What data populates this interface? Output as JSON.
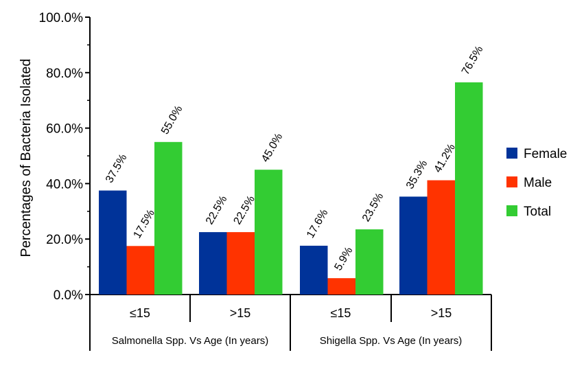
{
  "chart_data": {
    "type": "bar",
    "title": "",
    "ylabel": "Percentages of Bacteria Isolated",
    "ylim": [
      0,
      100
    ],
    "yticks": [
      0,
      20,
      40,
      60,
      80,
      100
    ],
    "ytick_labels": [
      "0.0%",
      "20.0%",
      "40.0%",
      "60.0%",
      "80.0%",
      "100.0%"
    ],
    "grid": false,
    "legend_position": "right",
    "groups": [
      {
        "label": "Salmonella Spp. Vs Age (In years)",
        "categories": [
          "≤15",
          ">15"
        ]
      },
      {
        "label": "Shigella Spp. Vs Age (In years)",
        "categories": [
          "≤15",
          ">15"
        ]
      }
    ],
    "categories": [
      "≤15",
      ">15",
      "≤15",
      ">15"
    ],
    "series": [
      {
        "name": "Female",
        "color": "#003399",
        "values": [
          37.5,
          22.5,
          17.6,
          35.3
        ],
        "labels": [
          "37.5%",
          "22.5%",
          "17.6%",
          "35.3%"
        ]
      },
      {
        "name": "Male",
        "color": "#ff3300",
        "values": [
          17.5,
          22.5,
          5.9,
          41.2
        ],
        "labels": [
          "17.5%",
          "22.5%",
          "5.9%",
          "41.2%"
        ]
      },
      {
        "name": "Total",
        "color": "#33cc33",
        "values": [
          55.0,
          45.0,
          23.5,
          76.5
        ],
        "labels": [
          "55.0%",
          "45.0%",
          "23.5%",
          "76.5%"
        ]
      }
    ]
  }
}
